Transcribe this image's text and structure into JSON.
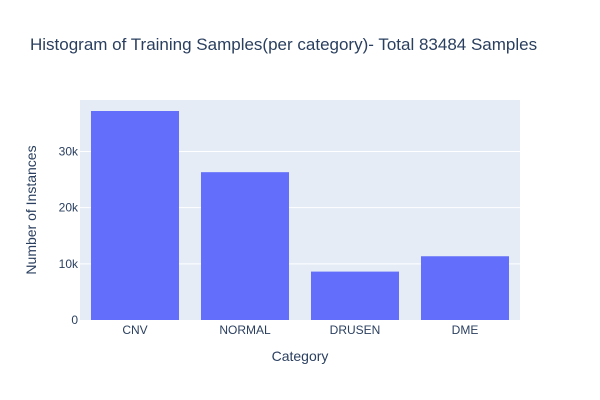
{
  "colors": {
    "bar": "#636efa",
    "plot_bg": "#e5ecf6",
    "grid": "#ffffff",
    "text": "#2a3f5f"
  },
  "chart_data": {
    "type": "bar",
    "title": "Histogram of Training Samples(per category)- Total 83484 Samples",
    "xlabel": "Category",
    "ylabel": "Number of Instances",
    "categories": [
      "CNV",
      "NORMAL",
      "DRUSEN",
      "DME"
    ],
    "values": [
      37205,
      26315,
      8616,
      11348
    ],
    "ylim": [
      0,
      39163
    ],
    "yticks": [
      0,
      10000,
      20000,
      30000
    ],
    "ytick_labels": [
      "0",
      "10k",
      "20k",
      "30k"
    ],
    "grid": true,
    "legend": "none"
  }
}
